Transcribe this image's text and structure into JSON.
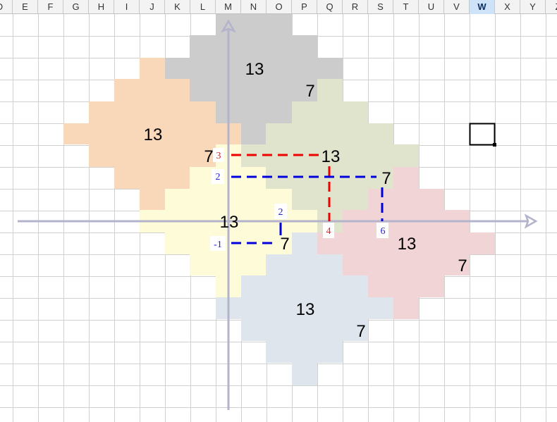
{
  "spreadsheet": {
    "columns": [
      "D",
      "E",
      "F",
      "G",
      "H",
      "I",
      "J",
      "K",
      "L",
      "M",
      "N",
      "O",
      "P",
      "Q",
      "R",
      "S",
      "T",
      "U",
      "V",
      "W",
      "X",
      "Y",
      "Z"
    ],
    "selected_column": "W"
  },
  "colors": {
    "grid": "#d0d0d0",
    "axis": "#b3b3cc",
    "gray": "#cccccc",
    "peach": "#f9d7b9",
    "sage": "#e0e4cd",
    "yellow": "#fefbd8",
    "pink": "#f1d4d5",
    "blue": "#dfe5ec",
    "red_line": "#ee0000",
    "blue_line": "#0000dd",
    "number_red": "#dd2222",
    "number_blue": "#2222cc"
  },
  "diamonds": [
    {
      "name": "gray",
      "center": "13",
      "side": "7"
    },
    {
      "name": "peach",
      "center": "13",
      "side": "7"
    },
    {
      "name": "sage",
      "center": "13",
      "side": "7"
    },
    {
      "name": "yellow",
      "center": "13",
      "side": "7"
    },
    {
      "name": "pink",
      "center": "13",
      "side": "7"
    },
    {
      "name": "blue",
      "center": "13",
      "side": "7"
    }
  ],
  "coordinate_labels": {
    "red_y": "3",
    "red_x": "4",
    "blue_y_upper": "2",
    "blue_x_upper": "6",
    "blue_y_small": "2",
    "blue_y_lower": "-1"
  }
}
